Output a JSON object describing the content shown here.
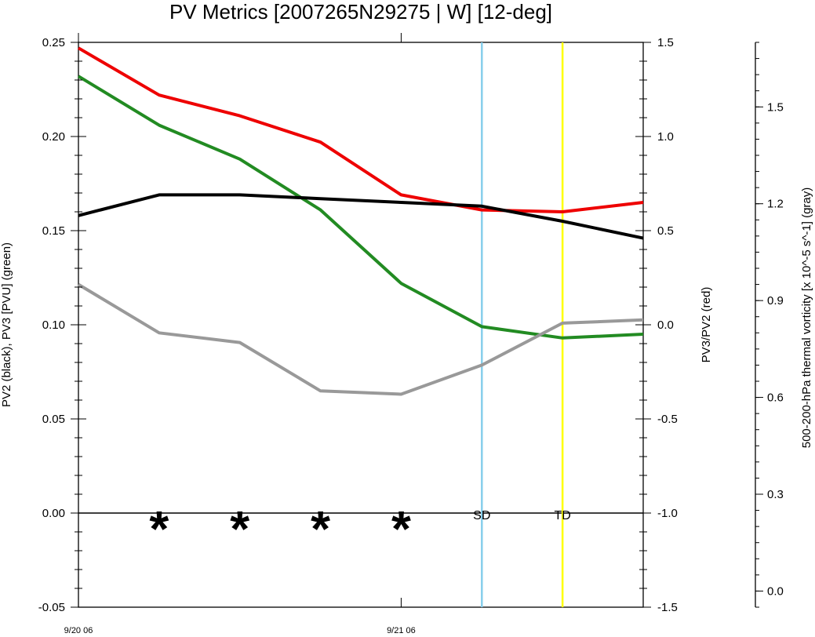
{
  "chart_data": {
    "type": "line",
    "title": "PV Metrics [2007265N29275 | W] [12-deg]",
    "ylabel_left": "PV2 (black), PV3 [PVU] (green)",
    "ylabel_right1": "PV3/PV2 (red)",
    "ylabel_right2": "500-200-hPa thermal vorticity [x 10^-5 s^-1] (gray)",
    "x_tick_labels": [
      "9/20 06",
      "9/21 06"
    ],
    "x_tick_positions": [
      0,
      4
    ],
    "xlim": [
      0,
      7
    ],
    "y_left": {
      "lim": [
        -0.05,
        0.25
      ],
      "ticks": [
        "-0.05",
        "0.00",
        "0.05",
        "0.10",
        "0.15",
        "0.20",
        "0.25"
      ]
    },
    "y_right1": {
      "lim": [
        -1.5,
        1.5
      ],
      "ticks": [
        "-1.5",
        "-1.0",
        "-0.5",
        "0.0",
        "0.5",
        "1.0",
        "1.5"
      ]
    },
    "y_right2": {
      "lim": [
        -0.05,
        1.7
      ],
      "ticks": [
        "0.0",
        "0.3",
        "0.6",
        "0.9",
        "1.2",
        "1.5"
      ]
    },
    "x": [
      0,
      1,
      2,
      3,
      4,
      5,
      6,
      7
    ],
    "series": [
      {
        "axis": "right1",
        "color": "#ee0000",
        "values": [
          1.47,
          1.22,
          1.11,
          0.97,
          0.69,
          0.61,
          0.6,
          0.65
        ]
      },
      {
        "axis": "left",
        "color": "#228b22",
        "values": [
          0.232,
          0.206,
          0.188,
          0.161,
          0.122,
          0.099,
          0.093,
          0.095
        ]
      },
      {
        "axis": "left",
        "color": "#000000",
        "values": [
          0.158,
          0.169,
          0.169,
          0.167,
          0.165,
          0.163,
          0.155,
          0.146
        ]
      },
      {
        "axis": "right2",
        "color": "#999999",
        "values": [
          0.95,
          0.8,
          0.77,
          0.62,
          0.61,
          0.7,
          0.83,
          0.84
        ]
      }
    ],
    "zero_line_left": 0,
    "markers": [
      {
        "x": 1,
        "label": "*"
      },
      {
        "x": 2,
        "label": "*"
      },
      {
        "x": 3,
        "label": "*"
      },
      {
        "x": 4,
        "label": "*"
      }
    ],
    "vlines": [
      {
        "x": 5,
        "color": "#87ceeb",
        "label": "SD"
      },
      {
        "x": 6,
        "color": "#ffff00",
        "label": "TD"
      }
    ]
  }
}
